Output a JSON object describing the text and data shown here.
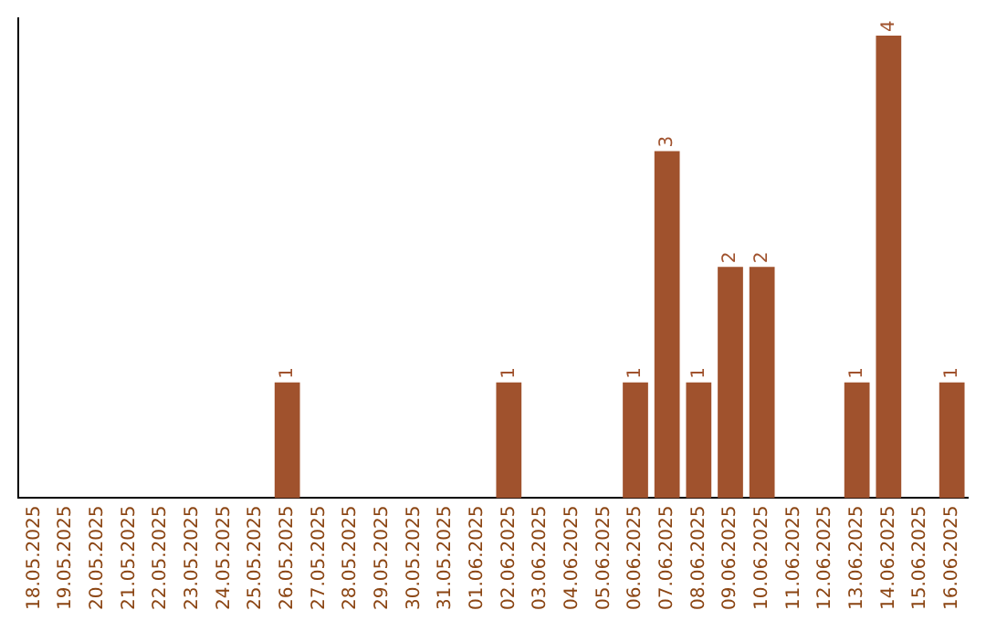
{
  "chart_data": {
    "type": "bar",
    "categories": [
      "18.05.2025",
      "19.05.2025",
      "20.05.2025",
      "21.05.2025",
      "22.05.2025",
      "23.05.2025",
      "24.05.2025",
      "25.05.2025",
      "26.05.2025",
      "27.05.2025",
      "28.05.2025",
      "29.05.2025",
      "30.05.2025",
      "31.05.2025",
      "01.06.2025",
      "02.06.2025",
      "03.06.2025",
      "04.06.2025",
      "05.06.2025",
      "06.06.2025",
      "07.06.2025",
      "08.06.2025",
      "09.06.2025",
      "10.06.2025",
      "11.06.2025",
      "12.06.2025",
      "13.06.2025",
      "14.06.2025",
      "15.06.2025",
      "16.06.2025"
    ],
    "values": [
      0,
      0,
      0,
      0,
      0,
      0,
      0,
      0,
      1,
      0,
      0,
      0,
      0,
      0,
      0,
      1,
      0,
      0,
      0,
      1,
      3,
      1,
      2,
      2,
      0,
      0,
      1,
      4,
      0,
      1
    ],
    "value_labels": [
      null,
      null,
      null,
      null,
      null,
      null,
      null,
      null,
      "1",
      null,
      null,
      null,
      null,
      null,
      null,
      "1",
      null,
      null,
      null,
      "1",
      "3",
      "1",
      "2",
      "2",
      null,
      null,
      "1",
      "4",
      null,
      "1"
    ],
    "color": "#a0522d",
    "ylim": [
      0,
      4.15
    ],
    "tick_labels": "x",
    "grid": false,
    "legend": false
  }
}
